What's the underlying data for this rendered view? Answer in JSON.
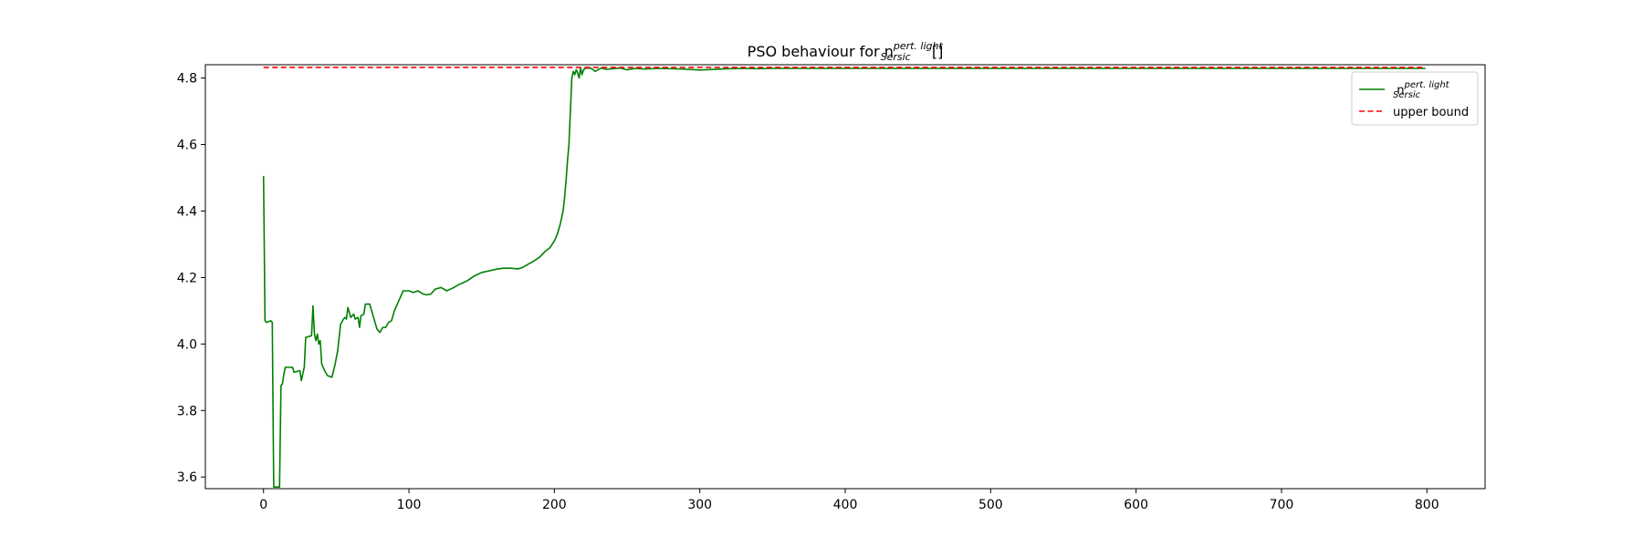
{
  "chart_data": {
    "type": "line",
    "title": {
      "prefix": "PSO behaviour for n",
      "superscript": "pert. light",
      "subscript": "Sersic",
      "suffix": " []"
    },
    "xlabel": "",
    "ylabel": "",
    "xlim": [
      -40,
      840
    ],
    "ylim": [
      3.565,
      4.84
    ],
    "x_ticks": [
      0,
      100,
      200,
      300,
      400,
      500,
      600,
      700,
      800
    ],
    "y_ticks": [
      3.6,
      3.8,
      4.0,
      4.2,
      4.4,
      4.6,
      4.8
    ],
    "grid": false,
    "legend_position": "top-right",
    "series": [
      {
        "name": {
          "base": "n",
          "superscript": "pert. light",
          "subscript": "Sersic"
        },
        "color": "#008000",
        "style": "solid",
        "points": [
          [
            0,
            4.505
          ],
          [
            1,
            4.07
          ],
          [
            2,
            4.065
          ],
          [
            5,
            4.07
          ],
          [
            6,
            4.065
          ],
          [
            7,
            3.57
          ],
          [
            10,
            3.57
          ],
          [
            11,
            3.57
          ],
          [
            12,
            3.875
          ],
          [
            13,
            3.88
          ],
          [
            14,
            3.91
          ],
          [
            15,
            3.93
          ],
          [
            20,
            3.93
          ],
          [
            21,
            3.915
          ],
          [
            25,
            3.92
          ],
          [
            26,
            3.89
          ],
          [
            28,
            3.93
          ],
          [
            29,
            4.02
          ],
          [
            33,
            4.025
          ],
          [
            34,
            4.115
          ],
          [
            35,
            4.03
          ],
          [
            36,
            4.01
          ],
          [
            37,
            4.03
          ],
          [
            38,
            4.0
          ],
          [
            39,
            4.01
          ],
          [
            40,
            3.94
          ],
          [
            42,
            3.92
          ],
          [
            44,
            3.905
          ],
          [
            47,
            3.9
          ],
          [
            49,
            3.935
          ],
          [
            51,
            3.98
          ],
          [
            53,
            4.06
          ],
          [
            55,
            4.075
          ],
          [
            56,
            4.08
          ],
          [
            57,
            4.075
          ],
          [
            58,
            4.11
          ],
          [
            60,
            4.08
          ],
          [
            62,
            4.09
          ],
          [
            63,
            4.075
          ],
          [
            65,
            4.08
          ],
          [
            66,
            4.05
          ],
          [
            67,
            4.085
          ],
          [
            69,
            4.09
          ],
          [
            70,
            4.12
          ],
          [
            73,
            4.12
          ],
          [
            75,
            4.09
          ],
          [
            77,
            4.06
          ],
          [
            78,
            4.045
          ],
          [
            80,
            4.035
          ],
          [
            82,
            4.05
          ],
          [
            84,
            4.05
          ],
          [
            86,
            4.065
          ],
          [
            88,
            4.07
          ],
          [
            90,
            4.1
          ],
          [
            92,
            4.12
          ],
          [
            94,
            4.14
          ],
          [
            96,
            4.16
          ],
          [
            100,
            4.16
          ],
          [
            103,
            4.155
          ],
          [
            106,
            4.16
          ],
          [
            110,
            4.15
          ],
          [
            112,
            4.148
          ],
          [
            115,
            4.15
          ],
          [
            118,
            4.165
          ],
          [
            122,
            4.17
          ],
          [
            126,
            4.16
          ],
          [
            130,
            4.168
          ],
          [
            135,
            4.18
          ],
          [
            140,
            4.19
          ],
          [
            145,
            4.205
          ],
          [
            150,
            4.215
          ],
          [
            155,
            4.22
          ],
          [
            160,
            4.225
          ],
          [
            165,
            4.228
          ],
          [
            170,
            4.228
          ],
          [
            175,
            4.226
          ],
          [
            178,
            4.23
          ],
          [
            182,
            4.24
          ],
          [
            186,
            4.25
          ],
          [
            190,
            4.262
          ],
          [
            194,
            4.28
          ],
          [
            197,
            4.29
          ],
          [
            200,
            4.31
          ],
          [
            202,
            4.33
          ],
          [
            204,
            4.36
          ],
          [
            206,
            4.4
          ],
          [
            207,
            4.44
          ],
          [
            208,
            4.49
          ],
          [
            209,
            4.55
          ],
          [
            210,
            4.6
          ],
          [
            211,
            4.7
          ],
          [
            212,
            4.8
          ],
          [
            213,
            4.82
          ],
          [
            214,
            4.81
          ],
          [
            215,
            4.825
          ],
          [
            216,
            4.815
          ],
          [
            217,
            4.8
          ],
          [
            218,
            4.83
          ],
          [
            219,
            4.81
          ],
          [
            220,
            4.825
          ],
          [
            222,
            4.83
          ],
          [
            225,
            4.83
          ],
          [
            228,
            4.82
          ],
          [
            232,
            4.83
          ],
          [
            236,
            4.826
          ],
          [
            240,
            4.828
          ],
          [
            245,
            4.83
          ],
          [
            250,
            4.825
          ],
          [
            256,
            4.829
          ],
          [
            262,
            4.827
          ],
          [
            270,
            4.829
          ],
          [
            280,
            4.828
          ],
          [
            288,
            4.827
          ],
          [
            296,
            4.825
          ],
          [
            300,
            4.824
          ],
          [
            310,
            4.826
          ],
          [
            320,
            4.828
          ],
          [
            330,
            4.829
          ],
          [
            340,
            4.828
          ],
          [
            350,
            4.829
          ],
          [
            400,
            4.829
          ],
          [
            500,
            4.829
          ],
          [
            600,
            4.829
          ],
          [
            700,
            4.829
          ],
          [
            799,
            4.829
          ]
        ]
      },
      {
        "name": "upper bound",
        "color": "#ff0000",
        "style": "dashed",
        "points": [
          [
            0,
            4.832
          ],
          [
            799,
            4.832
          ]
        ]
      }
    ]
  }
}
